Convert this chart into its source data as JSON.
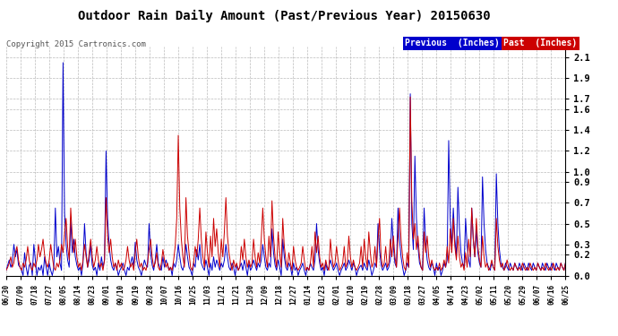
{
  "title": "Outdoor Rain Daily Amount (Past/Previous Year) 20150630",
  "copyright": "Copyright 2015 Cartronics.com",
  "yticks": [
    0.0,
    0.2,
    0.3,
    0.5,
    0.7,
    0.9,
    1.0,
    1.2,
    1.4,
    1.6,
    1.7,
    1.9,
    2.1
  ],
  "ylim": [
    0.0,
    2.2
  ],
  "bg_color": "#ffffff",
  "grid_color": "#bbbbbb",
  "prev_color": "#0000cc",
  "past_color": "#cc0000",
  "legend_prev_bg": "#0000cc",
  "legend_past_bg": "#cc0000",
  "legend_prev_label": "Previous  (Inches)",
  "legend_past_label": "Past  (Inches)",
  "x_dates": [
    "06/30",
    "07/09",
    "07/18",
    "07/27",
    "08/05",
    "08/14",
    "08/23",
    "09/01",
    "09/10",
    "09/19",
    "09/28",
    "10/07",
    "10/16",
    "10/25",
    "11/03",
    "11/12",
    "11/21",
    "11/30",
    "12/09",
    "12/18",
    "12/27",
    "01/14",
    "01/23",
    "02/01",
    "02/10",
    "02/19",
    "02/28",
    "03/09",
    "03/18",
    "03/27",
    "04/05",
    "04/14",
    "04/23",
    "05/02",
    "05/11",
    "05/20",
    "05/29",
    "06/07",
    "06/16",
    "06/25"
  ],
  "prev_data": [
    0.05,
    0.1,
    0.15,
    0.08,
    0.12,
    0.3,
    0.18,
    0.25,
    0.1,
    0.08,
    0.05,
    0.0,
    0.22,
    0.08,
    0.0,
    0.1,
    0.12,
    0.0,
    0.3,
    0.15,
    0.0,
    0.08,
    0.05,
    0.1,
    0.0,
    0.18,
    0.08,
    0.0,
    0.12,
    0.05,
    0.0,
    0.08,
    0.65,
    0.18,
    0.28,
    0.12,
    0.05,
    2.05,
    0.6,
    0.3,
    0.15,
    0.08,
    0.55,
    0.22,
    0.35,
    0.18,
    0.1,
    0.05,
    0.08,
    0.0,
    0.12,
    0.5,
    0.22,
    0.08,
    0.15,
    0.3,
    0.1,
    0.05,
    0.08,
    0.0,
    0.12,
    0.05,
    0.18,
    0.08,
    0.15,
    1.2,
    0.55,
    0.3,
    0.15,
    0.08,
    0.05,
    0.12,
    0.08,
    0.0,
    0.05,
    0.08,
    0.12,
    0.05,
    0.0,
    0.08,
    0.05,
    0.12,
    0.18,
    0.08,
    0.32,
    0.15,
    0.08,
    0.05,
    0.0,
    0.08,
    0.15,
    0.1,
    0.08,
    0.5,
    0.22,
    0.1,
    0.05,
    0.15,
    0.3,
    0.12,
    0.08,
    0.05,
    0.18,
    0.08,
    0.15,
    0.1,
    0.05,
    0.08,
    0.0,
    0.12,
    0.08,
    0.15,
    0.3,
    0.18,
    0.08,
    0.05,
    0.12,
    0.3,
    0.18,
    0.08,
    0.05,
    0.0,
    0.12,
    0.08,
    0.25,
    0.15,
    0.3,
    0.12,
    0.08,
    0.05,
    0.15,
    0.08,
    0.0,
    0.12,
    0.05,
    0.18,
    0.08,
    0.15,
    0.1,
    0.05,
    0.12,
    0.08,
    0.15,
    0.3,
    0.18,
    0.08,
    0.05,
    0.12,
    0.08,
    0.0,
    0.1,
    0.05,
    0.08,
    0.12,
    0.05,
    0.15,
    0.08,
    0.0,
    0.12,
    0.05,
    0.08,
    0.15,
    0.1,
    0.05,
    0.12,
    0.08,
    0.15,
    0.3,
    0.18,
    0.08,
    0.05,
    0.12,
    0.08,
    0.45,
    0.22,
    0.1,
    0.05,
    0.15,
    0.08,
    0.0,
    0.35,
    0.18,
    0.08,
    0.05,
    0.12,
    0.08,
    0.0,
    0.12,
    0.05,
    0.08,
    0.0,
    0.05,
    0.08,
    0.12,
    0.05,
    0.0,
    0.08,
    0.05,
    0.12,
    0.08,
    0.05,
    0.15,
    0.5,
    0.25,
    0.12,
    0.05,
    0.08,
    0.0,
    0.12,
    0.05,
    0.08,
    0.15,
    0.1,
    0.05,
    0.08,
    0.12,
    0.05,
    0.0,
    0.05,
    0.08,
    0.12,
    0.05,
    0.08,
    0.15,
    0.1,
    0.05,
    0.12,
    0.08,
    0.0,
    0.05,
    0.08,
    0.1,
    0.05,
    0.12,
    0.08,
    0.05,
    0.15,
    0.08,
    0.0,
    0.05,
    0.12,
    0.08,
    0.5,
    0.25,
    0.1,
    0.05,
    0.08,
    0.12,
    0.05,
    0.08,
    0.15,
    0.55,
    0.28,
    0.12,
    0.08,
    0.65,
    0.35,
    0.18,
    0.08,
    0.0,
    0.05,
    0.12,
    0.08,
    1.75,
    0.5,
    0.25,
    1.15,
    0.55,
    0.28,
    0.12,
    0.08,
    0.05,
    0.65,
    0.32,
    0.15,
    0.08,
    0.05,
    0.12,
    0.08,
    0.0,
    0.12,
    0.05,
    0.08,
    0.0,
    0.05,
    0.12,
    0.08,
    0.15,
    1.3,
    0.55,
    0.28,
    0.65,
    0.35,
    0.18,
    0.85,
    0.45,
    0.22,
    0.12,
    0.08,
    0.55,
    0.28,
    0.15,
    0.08,
    0.65,
    0.35,
    0.18,
    0.45,
    0.22,
    0.12,
    0.08,
    0.95,
    0.5,
    0.25,
    0.12,
    0.08,
    0.05,
    0.12,
    0.08,
    0.05,
    0.98,
    0.5,
    0.25,
    0.12,
    0.08,
    0.05,
    0.12,
    0.08,
    0.05,
    0.12,
    0.08,
    0.05,
    0.12,
    0.08,
    0.05,
    0.12,
    0.08,
    0.05,
    0.12,
    0.08,
    0.05,
    0.12,
    0.08,
    0.05,
    0.12,
    0.08,
    0.05,
    0.12,
    0.08,
    0.05,
    0.12,
    0.08,
    0.05,
    0.12,
    0.08,
    0.05,
    0.12,
    0.08,
    0.05,
    0.12,
    0.08,
    0.05,
    0.12,
    0.08,
    0.05,
    0.12
  ],
  "past_data": [
    0.05,
    0.08,
    0.12,
    0.18,
    0.08,
    0.12,
    0.22,
    0.28,
    0.15,
    0.08,
    0.05,
    0.12,
    0.08,
    0.15,
    0.28,
    0.15,
    0.08,
    0.05,
    0.12,
    0.08,
    0.15,
    0.3,
    0.18,
    0.25,
    0.35,
    0.2,
    0.12,
    0.08,
    0.15,
    0.3,
    0.18,
    0.08,
    0.05,
    0.12,
    0.08,
    0.15,
    0.3,
    0.22,
    0.4,
    0.55,
    0.28,
    0.15,
    0.65,
    0.38,
    0.22,
    0.35,
    0.18,
    0.08,
    0.12,
    0.05,
    0.15,
    0.3,
    0.18,
    0.08,
    0.22,
    0.35,
    0.18,
    0.08,
    0.15,
    0.28,
    0.15,
    0.08,
    0.12,
    0.05,
    0.15,
    0.75,
    0.38,
    0.22,
    0.35,
    0.18,
    0.08,
    0.12,
    0.05,
    0.15,
    0.08,
    0.12,
    0.05,
    0.08,
    0.15,
    0.28,
    0.15,
    0.08,
    0.12,
    0.05,
    0.22,
    0.35,
    0.18,
    0.08,
    0.12,
    0.05,
    0.08,
    0.05,
    0.12,
    0.25,
    0.35,
    0.18,
    0.08,
    0.12,
    0.22,
    0.08,
    0.05,
    0.12,
    0.25,
    0.15,
    0.08,
    0.12,
    0.05,
    0.08,
    0.05,
    0.15,
    0.28,
    0.55,
    1.35,
    0.65,
    0.35,
    0.18,
    0.08,
    0.75,
    0.38,
    0.22,
    0.08,
    0.05,
    0.12,
    0.28,
    0.18,
    0.35,
    0.65,
    0.35,
    0.18,
    0.08,
    0.42,
    0.22,
    0.08,
    0.38,
    0.18,
    0.55,
    0.28,
    0.45,
    0.22,
    0.08,
    0.35,
    0.18,
    0.42,
    0.75,
    0.38,
    0.22,
    0.12,
    0.05,
    0.15,
    0.08,
    0.12,
    0.05,
    0.08,
    0.28,
    0.15,
    0.35,
    0.18,
    0.08,
    0.15,
    0.08,
    0.12,
    0.35,
    0.18,
    0.08,
    0.22,
    0.12,
    0.35,
    0.65,
    0.35,
    0.18,
    0.08,
    0.38,
    0.18,
    0.72,
    0.38,
    0.18,
    0.08,
    0.42,
    0.22,
    0.08,
    0.55,
    0.28,
    0.15,
    0.08,
    0.22,
    0.12,
    0.05,
    0.28,
    0.15,
    0.08,
    0.05,
    0.08,
    0.12,
    0.28,
    0.15,
    0.05,
    0.08,
    0.05,
    0.12,
    0.28,
    0.08,
    0.42,
    0.22,
    0.38,
    0.18,
    0.08,
    0.12,
    0.05,
    0.15,
    0.08,
    0.05,
    0.35,
    0.18,
    0.08,
    0.12,
    0.28,
    0.15,
    0.05,
    0.08,
    0.12,
    0.28,
    0.08,
    0.12,
    0.38,
    0.18,
    0.08,
    0.15,
    0.08,
    0.05,
    0.08,
    0.12,
    0.28,
    0.08,
    0.35,
    0.18,
    0.08,
    0.42,
    0.22,
    0.08,
    0.12,
    0.28,
    0.08,
    0.35,
    0.55,
    0.18,
    0.08,
    0.12,
    0.28,
    0.08,
    0.12,
    0.35,
    0.18,
    0.38,
    0.18,
    0.08,
    0.35,
    0.65,
    0.35,
    0.18,
    0.08,
    0.05,
    0.22,
    0.08,
    1.72,
    0.72,
    0.35,
    0.5,
    0.25,
    0.38,
    0.18,
    0.08,
    0.05,
    0.42,
    0.22,
    0.38,
    0.18,
    0.08,
    0.15,
    0.08,
    0.05,
    0.08,
    0.05,
    0.12,
    0.05,
    0.08,
    0.15,
    0.08,
    0.28,
    0.12,
    0.45,
    0.22,
    0.55,
    0.28,
    0.15,
    0.38,
    0.18,
    0.08,
    0.12,
    0.05,
    0.22,
    0.08,
    0.35,
    0.18,
    0.65,
    0.35,
    0.18,
    0.55,
    0.28,
    0.15,
    0.08,
    0.38,
    0.18,
    0.08,
    0.12,
    0.05,
    0.08,
    0.15,
    0.08,
    0.05,
    0.55,
    0.28,
    0.15,
    0.08,
    0.12,
    0.05,
    0.08,
    0.15,
    0.08,
    0.05,
    0.08,
    0.05,
    0.12,
    0.08,
    0.05,
    0.08,
    0.05,
    0.12,
    0.08,
    0.05,
    0.08,
    0.05,
    0.12,
    0.08,
    0.05,
    0.08,
    0.05,
    0.12,
    0.08,
    0.05,
    0.08,
    0.05,
    0.12,
    0.08,
    0.05,
    0.08,
    0.05,
    0.12,
    0.08,
    0.05,
    0.08,
    0.05,
    0.12,
    0.08,
    0.05,
    0.12
  ]
}
